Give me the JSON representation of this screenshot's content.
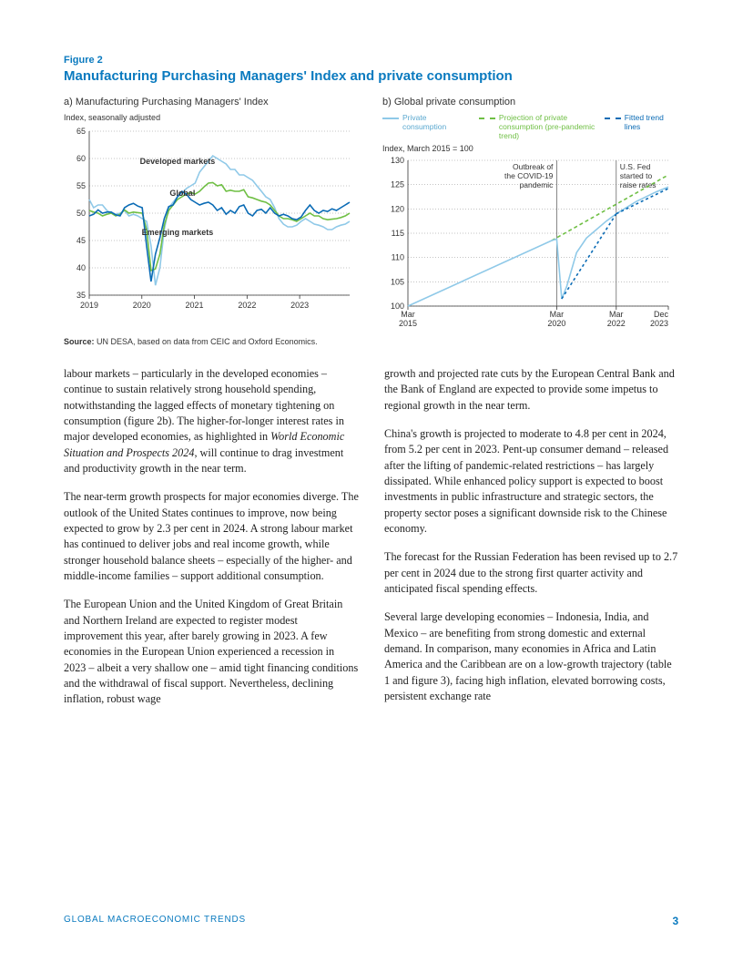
{
  "figure": {
    "label": "Figure 2",
    "title": "Manufacturing Purchasing Managers' Index and private consumption",
    "source_prefix": "Source:",
    "source": " UN DESA, based on data from CEIC and Oxford Economics."
  },
  "panel_a": {
    "title": "a)  Manufacturing Purchasing Managers' Index",
    "subtitle": "Index, seasonally adjusted",
    "ylim": [
      35,
      65
    ],
    "ytick_step": 5,
    "xlabels": [
      "2019",
      "2020",
      "2021",
      "2022",
      "2023"
    ],
    "x_range": 60,
    "colors": {
      "global": "#6fbf44",
      "developed": "#8fc9e8",
      "emerging": "#0a6bb5"
    },
    "annotations": {
      "developed": {
        "text": "Developed markets",
        "color": "#8fc9e8"
      },
      "global": {
        "text": "Global",
        "color": "#6fbf44"
      },
      "emerging": {
        "text": "Emerging markets",
        "color": "#0a6bb5"
      }
    },
    "global": [
      50.5,
      50.2,
      50.0,
      49.5,
      49.8,
      50.0,
      49.5,
      49.8,
      50.6,
      50.0,
      50.2,
      50.1,
      50.0,
      47.0,
      39.5,
      39.8,
      42.5,
      47.8,
      50.5,
      51.5,
      52.5,
      53.0,
      53.5,
      53.8,
      53.5,
      54.0,
      54.8,
      55.5,
      55.6,
      55.0,
      55.2,
      54.0,
      54.2,
      54.0,
      54.0,
      54.3,
      53.0,
      52.8,
      52.5,
      52.2,
      52.0,
      51.5,
      50.5,
      49.5,
      49.0,
      49.0,
      48.8,
      48.5,
      49.0,
      49.5,
      50.0,
      49.5,
      49.5,
      49.0,
      48.8,
      48.9,
      49.0,
      49.2,
      49.5,
      50.0
    ],
    "developed": [
      52.5,
      51.0,
      51.5,
      51.5,
      50.5,
      50.0,
      49.8,
      50.0,
      50.5,
      49.5,
      49.8,
      49.5,
      49.0,
      48.5,
      44.0,
      36.8,
      40.0,
      47.0,
      51.0,
      52.0,
      53.0,
      53.5,
      54.5,
      55.0,
      55.5,
      57.5,
      58.5,
      59.5,
      60.5,
      60.0,
      59.5,
      59.0,
      58.0,
      58.0,
      57.0,
      57.0,
      56.5,
      56.0,
      55.0,
      54.0,
      53.0,
      52.5,
      51.0,
      49.0,
      48.0,
      47.5,
      47.5,
      47.8,
      48.5,
      49.0,
      48.5,
      48.0,
      47.8,
      47.5,
      47.0,
      47.0,
      47.5,
      47.8,
      48.0,
      48.5
    ],
    "emerging": [
      49.5,
      49.8,
      50.6,
      50.0,
      50.2,
      50.2,
      49.7,
      49.5,
      51.0,
      51.5,
      51.8,
      51.3,
      51.0,
      44.0,
      37.5,
      42.5,
      45.5,
      49.0,
      51.2,
      51.5,
      53.0,
      54.0,
      53.5,
      52.5,
      52.0,
      51.5,
      51.8,
      52.0,
      51.5,
      50.5,
      51.0,
      49.8,
      50.5,
      50.0,
      51.2,
      51.5,
      50.0,
      49.5,
      50.5,
      50.7,
      50.0,
      51.0,
      50.0,
      49.5,
      49.8,
      49.5,
      49.0,
      48.8,
      49.3,
      50.5,
      51.5,
      50.5,
      50.0,
      50.5,
      50.3,
      50.8,
      50.5,
      51.0,
      51.5,
      52.0
    ]
  },
  "panel_b": {
    "title": "b)  Global private consumption",
    "subtitle": "Index, March 2015 = 100",
    "legend": {
      "private": {
        "text": "Private consumption",
        "color": "#8fc9e8",
        "dash": "none"
      },
      "projection": {
        "text": "Projection of private consumption (pre-pandemic trend)",
        "color": "#6fbf44",
        "dash": "4 3"
      },
      "fitted": {
        "text": "Fitted trend lines",
        "color": "#0a6bb5",
        "dash": "3 3"
      }
    },
    "ylim": [
      100,
      130
    ],
    "ytick_step": 5,
    "xlabels": [
      {
        "t": 0,
        "l1": "Mar",
        "l2": "2015"
      },
      {
        "t": 60,
        "l1": "Mar",
        "l2": "2020"
      },
      {
        "t": 84,
        "l1": "Mar",
        "l2": "2022"
      },
      {
        "t": 105,
        "l1": "Dec",
        "l2": "2023"
      }
    ],
    "x_range": 105,
    "colors": {
      "private": "#8fc9e8",
      "projection": "#6fbf44",
      "fitted": "#0a6bb5",
      "event": "#555"
    },
    "events": [
      {
        "t": 60,
        "lines": [
          "Outbreak of",
          "the COVID-19",
          "pandemic"
        ]
      },
      {
        "t": 84,
        "lines": [
          "U.S. Fed",
          "started to",
          "raise rates"
        ]
      }
    ],
    "private_pts": [
      [
        0,
        100
      ],
      [
        58,
        113.5
      ],
      [
        60,
        113.8
      ],
      [
        62,
        101.5
      ],
      [
        64,
        104
      ],
      [
        68,
        111
      ],
      [
        72,
        114
      ],
      [
        80,
        117.5
      ],
      [
        84,
        119
      ],
      [
        92,
        121.5
      ],
      [
        100,
        123.5
      ],
      [
        105,
        124.5
      ]
    ],
    "projection_pts": [
      [
        58,
        113.5
      ],
      [
        105,
        127
      ]
    ],
    "fitted_segments": [
      [
        [
          62,
          101.5
        ],
        [
          84,
          119
        ]
      ],
      [
        [
          84,
          119
        ],
        [
          105,
          124.2
        ]
      ]
    ]
  },
  "body": {
    "left": [
      "labour markets – particularly in the developed economies – continue to sustain relatively strong household spending, notwithstanding the lagged effects of monetary tightening on consumption (figure 2b). The higher-for-longer interest rates in major developed economies, as highlighted in <em>World Economic Situation and Prospects 2024</em>, will continue to drag investment and productivity growth in the near term.",
      "The near-term growth prospects for major economies diverge. The outlook of the United States continues to improve, now being expected to grow by 2.3 per cent in 2024. A strong labour market has continued to deliver jobs and real income growth, while stronger household balance sheets – especially of the higher- and middle-income families – support additional consumption.",
      "The European Union and the United Kingdom of Great Britain and Northern Ireland are expected to register modest improvement this year, after barely growing in 2023. A few economies in the European Union experienced a recession in 2023 – albeit a very shallow one – amid tight financing conditions and the withdrawal of fiscal support. Nevertheless, declining inflation, robust wage"
    ],
    "right": [
      "growth and projected rate cuts by the European Central Bank and the Bank of England are expected to provide some impetus to regional growth in the near term.",
      "China's growth is projected to moderate to 4.8 per cent in 2024, from 5.2 per cent in 2023. Pent-up consumer demand – released after the lifting of pandemic-related restrictions – has largely dissipated. While enhanced policy support is expected to boost investments in public infrastructure and strategic sectors, the property sector poses a significant downside risk to the Chinese economy.",
      "The forecast for the Russian Federation has been revised up to 2.7 per cent in 2024 due to the strong first quarter activity and anticipated fiscal spending effects.",
      "Several large developing economies – Indonesia, India, and Mexico – are benefiting from strong domestic and external demand. In comparison, many economies in Africa and Latin America and the Caribbean are on a low-growth trajectory (table 1 and figure 3), facing high inflation, elevated borrowing costs, persistent exchange rate"
    ]
  },
  "footer": {
    "section": "GLOBAL  MACROECONOMIC TRENDS",
    "page": "3"
  }
}
